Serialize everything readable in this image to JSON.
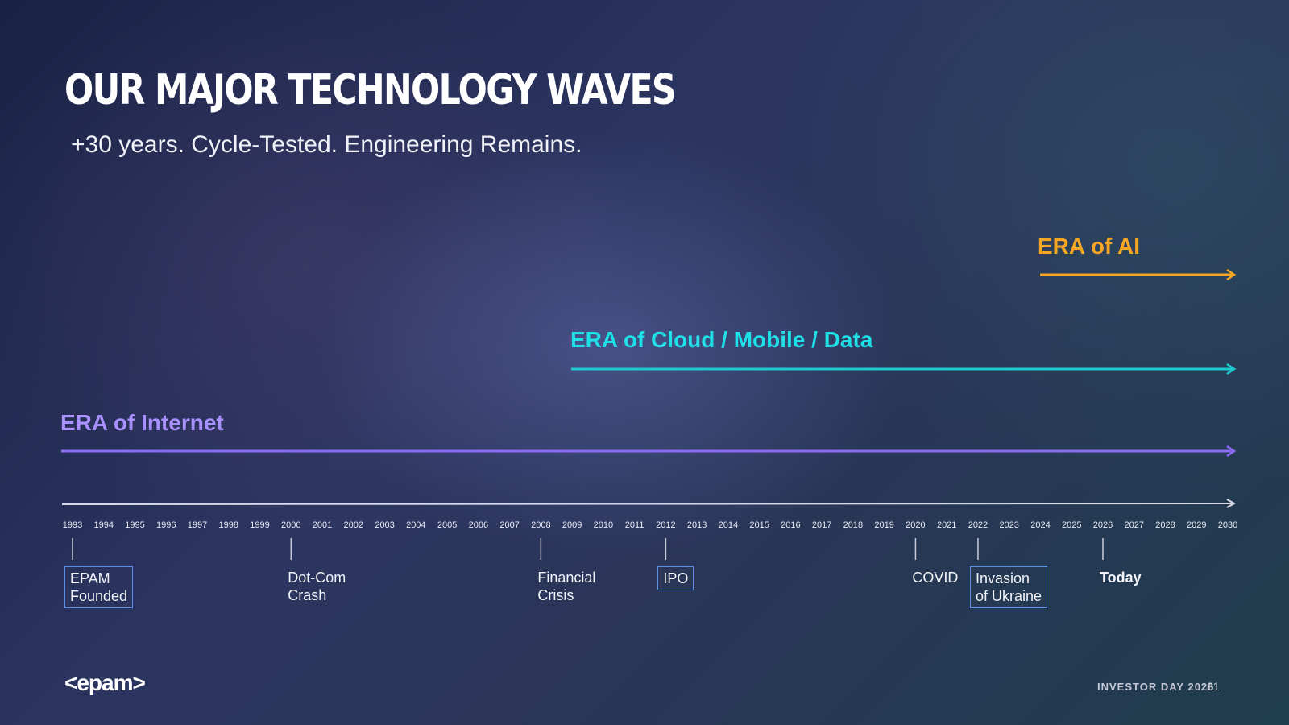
{
  "slide": {
    "title": "OUR MAJOR TECHNOLOGY WAVES",
    "subtitle": "+30 years. Cycle-Tested. Engineering Remains."
  },
  "eras": [
    {
      "label": "ERA of AI",
      "start": 2025,
      "end": 2030,
      "color": "#f5a623"
    },
    {
      "label": "ERA of Cloud / Mobile / Data",
      "start": 2009,
      "end": 2030,
      "color": "#1fc9cf"
    },
    {
      "label": "ERA of Internet",
      "start": 1993,
      "end": 2030,
      "color": "#8a6cf0"
    }
  ],
  "timeline": {
    "years": [
      "1993",
      "1994",
      "1995",
      "1996",
      "1997",
      "1998",
      "1999",
      "2000",
      "2001",
      "2002",
      "2003",
      "2004",
      "2005",
      "2006",
      "2007",
      "2008",
      "2009",
      "2010",
      "2011",
      "2012",
      "2013",
      "2014",
      "2015",
      "2016",
      "2017",
      "2018",
      "2019",
      "2020",
      "2021",
      "2022",
      "2023",
      "2024",
      "2025",
      "2026",
      "2027",
      "2028",
      "2029",
      "2030"
    ]
  },
  "events": [
    {
      "year": 1993,
      "line1": "EPAM",
      "line2": "Founded",
      "boxed": true,
      "bold": false
    },
    {
      "year": 2000,
      "line1": "Dot-Com",
      "line2": "Crash",
      "boxed": false,
      "bold": false
    },
    {
      "year": 2008,
      "line1": "Financial",
      "line2": "Crisis",
      "boxed": false,
      "bold": false
    },
    {
      "year": 2012,
      "line1": "IPO",
      "line2": "",
      "boxed": true,
      "bold": false
    },
    {
      "year": 2020,
      "line1": "COVID",
      "line2": "",
      "boxed": false,
      "bold": false
    },
    {
      "year": 2022,
      "line1": "Invasion",
      "line2": "of Ukraine",
      "boxed": true,
      "bold": false
    },
    {
      "year": 2026,
      "line1": "Today",
      "line2": "",
      "boxed": false,
      "bold": true
    }
  ],
  "footer": {
    "logo": "<epam>",
    "event": "INVESTOR DAY 2026",
    "page": "81"
  }
}
